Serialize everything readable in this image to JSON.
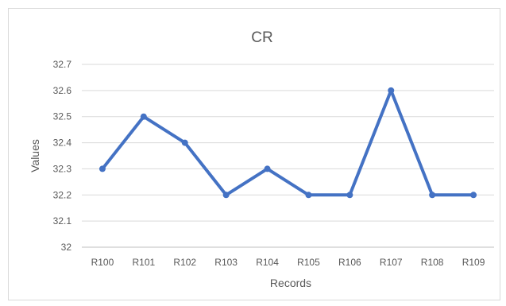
{
  "chart_data": {
    "type": "line",
    "title": "CR",
    "xlabel": "Records",
    "ylabel": "Values",
    "categories": [
      "R100",
      "R101",
      "R102",
      "R103",
      "R104",
      "R105",
      "R106",
      "R107",
      "R108",
      "R109"
    ],
    "values": [
      32.3,
      32.5,
      32.4,
      32.2,
      32.3,
      32.2,
      32.2,
      32.6,
      32.2,
      32.2
    ],
    "ylim": [
      32,
      32.7
    ],
    "y_ticks": [
      "32",
      "32.1",
      "32.2",
      "32.3",
      "32.4",
      "32.5",
      "32.6",
      "32.7"
    ],
    "grid": "horizontal",
    "legend": "none",
    "line_color": "#4472c4"
  }
}
